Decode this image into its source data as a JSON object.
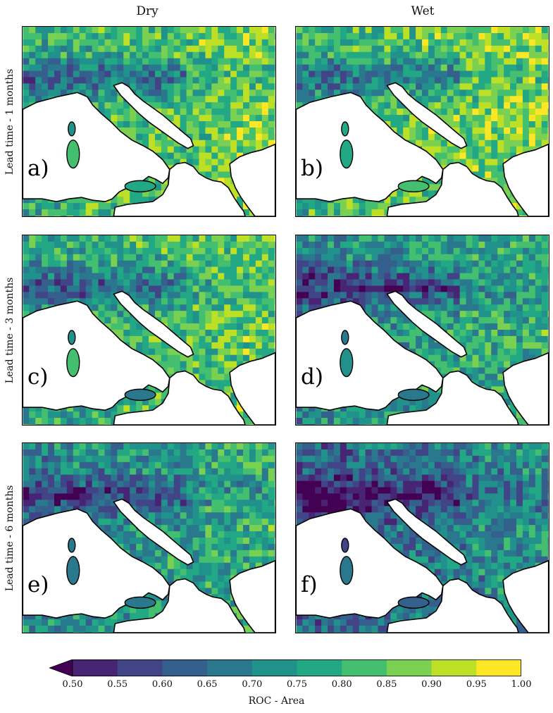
{
  "chart_data": {
    "type": "heatmap",
    "columns": [
      "Dry",
      "Wet"
    ],
    "rows": [
      "Lead time - 1 months",
      "Lead time - 3 months",
      "Lead time - 6 months"
    ],
    "panels": [
      {
        "letter": "a)",
        "column": "Dry",
        "row": "Lead time - 1 months",
        "level": 0.78
      },
      {
        "letter": "b)",
        "column": "Wet",
        "row": "Lead time - 1 months",
        "level": 0.8
      },
      {
        "letter": "c)",
        "column": "Dry",
        "row": "Lead time - 3 months",
        "level": 0.76
      },
      {
        "letter": "d)",
        "column": "Wet",
        "row": "Lead time - 3 months",
        "level": 0.7
      },
      {
        "letter": "e)",
        "column": "Dry",
        "row": "Lead time - 6 months",
        "level": 0.7
      },
      {
        "letter": "f)",
        "column": "Wet",
        "row": "Lead time - 6 months",
        "level": 0.63
      }
    ],
    "colorbar": {
      "label": "ROC - Area",
      "ticks": [
        "0.50",
        "0.55",
        "0.60",
        "0.65",
        "0.70",
        "0.75",
        "0.80",
        "0.85",
        "0.90",
        "0.95",
        "1.00"
      ],
      "range": [
        0.5,
        1.0
      ],
      "extend": "min",
      "colors": [
        "#440154",
        "#482475",
        "#414487",
        "#355f8d",
        "#2a788e",
        "#21918c",
        "#22a884",
        "#44bf70",
        "#7ad151",
        "#bddf26",
        "#fde725"
      ]
    }
  }
}
